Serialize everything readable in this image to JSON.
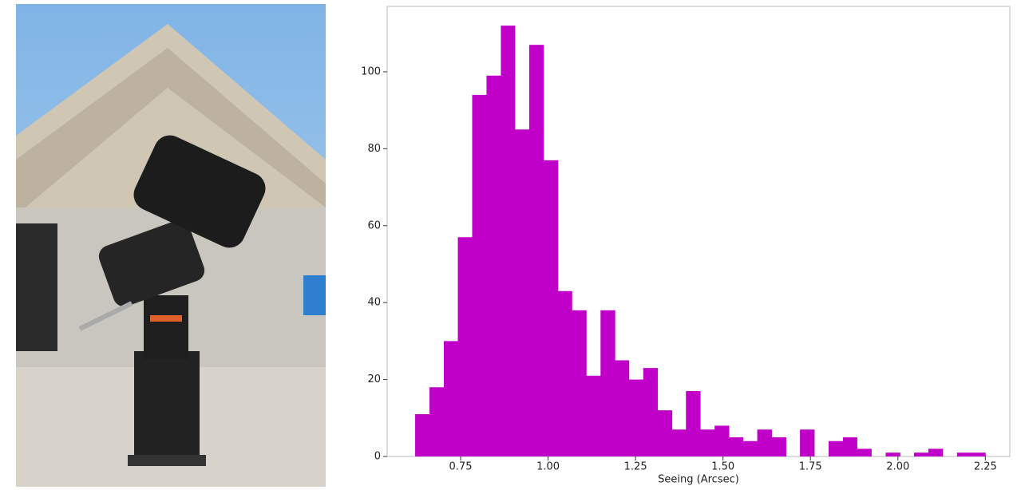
{
  "chart_data": {
    "type": "histogram",
    "xlabel": "Seeing (Arcsec)",
    "bins": [
      0.62,
      0.661,
      0.702,
      0.742,
      0.783,
      0.824,
      0.865,
      0.905,
      0.946,
      0.987,
      1.028,
      1.068,
      1.109,
      1.15,
      1.191,
      1.231,
      1.272,
      1.313,
      1.354,
      1.394,
      1.435,
      1.476,
      1.517,
      1.557,
      1.598,
      1.639,
      1.68,
      1.72,
      1.761,
      1.802,
      1.843,
      1.883,
      1.924,
      1.965,
      2.006,
      2.046,
      2.087,
      2.128,
      2.169,
      2.209,
      2.25
    ],
    "values": [
      11,
      18,
      30,
      57,
      94,
      99,
      112,
      85,
      107,
      77,
      43,
      38,
      21,
      38,
      25,
      20,
      23,
      12,
      7,
      17,
      7,
      8,
      5,
      4,
      7,
      5,
      0,
      7,
      0,
      4,
      5,
      2,
      0,
      1,
      0,
      1,
      2,
      0,
      1,
      1
    ],
    "color": "#c000c8",
    "xlim": [
      0.54,
      2.32
    ],
    "xticks": [
      0.75,
      {
        "value": 1.0,
        "label": "1.00"
      },
      1.25,
      {
        "value": 1.5,
        "label": "1.50"
      },
      1.75,
      {
        "value": 2.0,
        "label": "2.00"
      },
      2.25
    ],
    "ylim": [
      0,
      117
    ],
    "yticks": [
      0,
      20,
      40,
      60,
      80,
      100
    ]
  }
}
